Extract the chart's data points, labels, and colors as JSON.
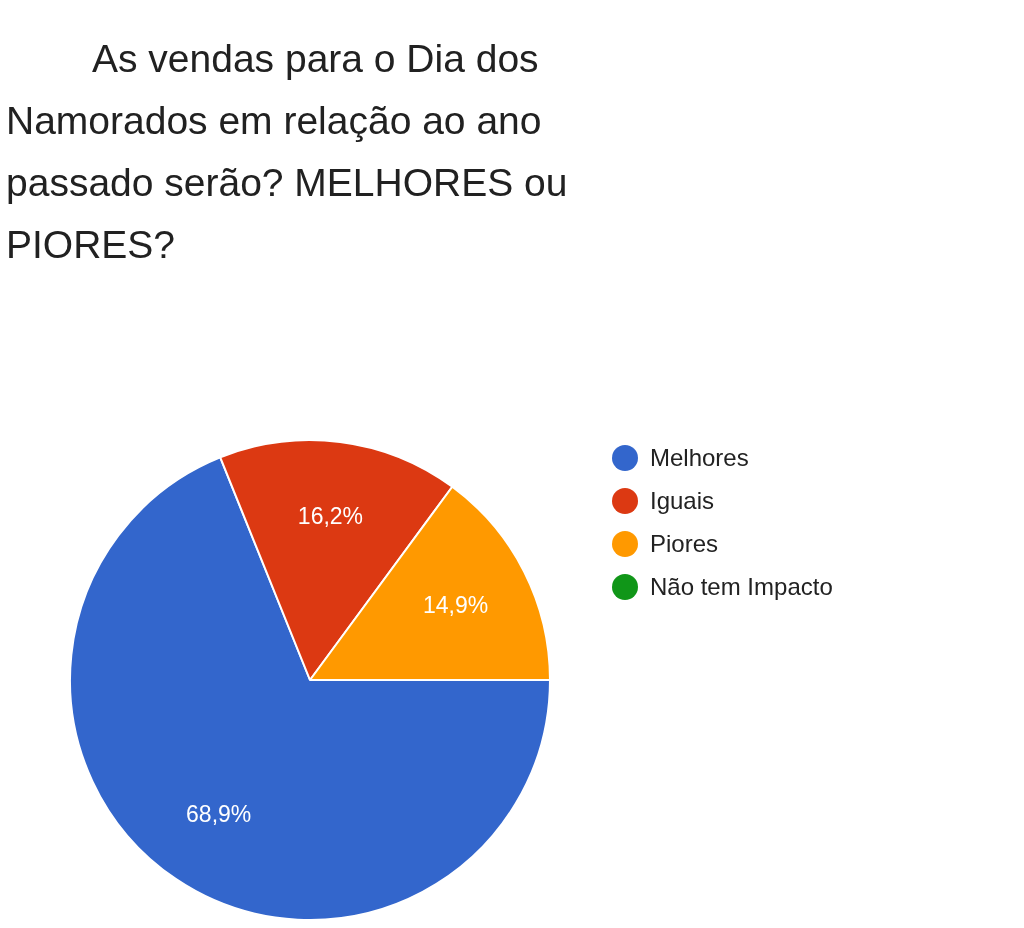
{
  "chart_data": {
    "type": "pie",
    "title": "As vendas para o Dia dos Namorados em relação ao ano passado serão? MELHORES ou PIORES?",
    "categories": [
      "Melhores",
      "Iguais",
      "Piores",
      "Não tem Impacto"
    ],
    "values": [
      68.9,
      16.2,
      14.9,
      0
    ],
    "colors": [
      "#3366cc",
      "#dc3912",
      "#ff9900",
      "#109618"
    ],
    "value_labels": [
      "68,9%",
      "16,2%",
      "14,9%",
      null
    ],
    "legend": "right"
  }
}
